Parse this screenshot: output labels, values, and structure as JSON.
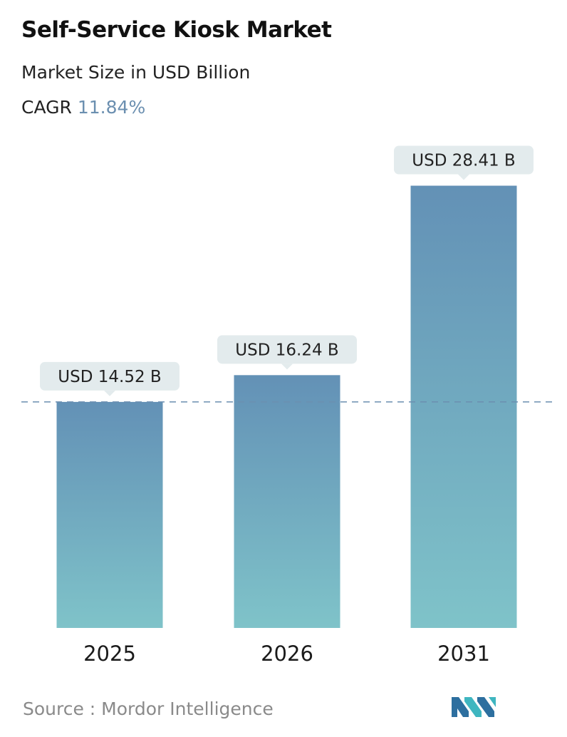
{
  "header": {
    "title": "Self-Service Kiosk Market",
    "subtitle": "Market Size in USD Billion",
    "cagr_label": "CAGR",
    "cagr_value": "11.84%"
  },
  "chart_data": {
    "type": "bar",
    "categories": [
      "2025",
      "2026",
      "2031"
    ],
    "values": [
      14.52,
      16.24,
      28.41
    ],
    "data_labels": [
      "USD 14.52 B",
      "USD 16.24 B",
      "USD 28.41 B"
    ],
    "title": "Self-Service Kiosk Market",
    "subtitle": "Market Size in USD Billion",
    "xlabel": "",
    "ylabel": "",
    "ylim": [
      0,
      30
    ],
    "grid": false,
    "legend": "none",
    "reference_line": {
      "value": 14.52,
      "style": "dashed"
    },
    "colors": {
      "bar_top": "#6391b6",
      "bar_bottom": "#7fc3c9",
      "label_bg": "#e3ebed",
      "reference_line": "#6b8fb0"
    }
  },
  "footer": {
    "source": "Source :  Mordor Intelligence",
    "logo": "mordor-intelligence-logo"
  }
}
